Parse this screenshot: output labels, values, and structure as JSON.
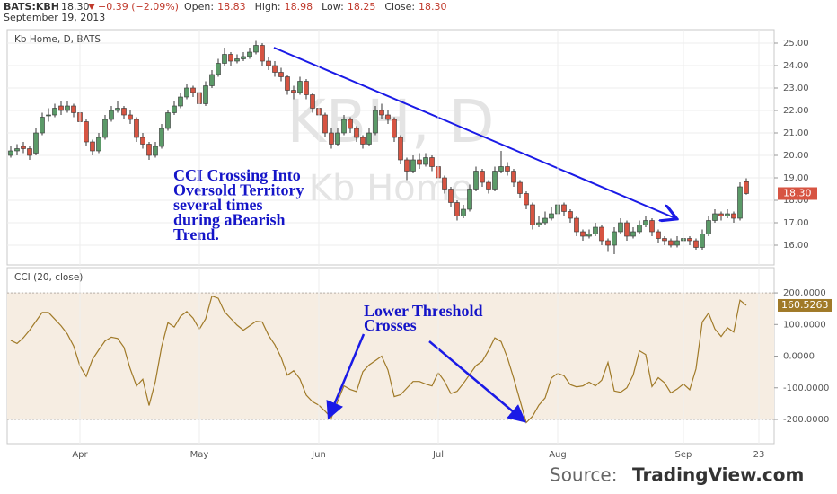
{
  "header": {
    "symbol": "BATS:KBH",
    "last": "18.30",
    "change": "−0.39 (−2.09%)",
    "fields": [
      {
        "label": "Open:",
        "value": "18.83"
      },
      {
        "label": "High:",
        "value": "18.98"
      },
      {
        "label": "Low:",
        "value": "18.25"
      },
      {
        "label": "Close:",
        "value": "18.30"
      }
    ],
    "date": "September 19, 2013"
  },
  "source": {
    "label": "Source:",
    "site": "TradingView.com"
  },
  "x_axis": {
    "xlim": [
      -0.57,
      121.43
    ],
    "xticks": [
      {
        "value": 11,
        "label": "Apr"
      },
      {
        "value": 30,
        "label": "May"
      },
      {
        "value": 49,
        "label": "Jun"
      },
      {
        "value": 68,
        "label": "Jul"
      },
      {
        "value": 87,
        "label": "Aug"
      },
      {
        "value": 107,
        "label": "Sep"
      },
      {
        "value": 119,
        "label": "23"
      }
    ]
  },
  "chart_data": [
    {
      "type": "candlestick",
      "title": "Kb Home, D, BATS",
      "watermark": [
        "KBH, D",
        "Kb Home"
      ],
      "up_color": "#5b9a68",
      "down_color": "#d75442",
      "grid": true,
      "annotation": [
        "CCI Crossing Into",
        "Oversold Territory",
        "several times",
        "during aBearish",
        "Trend."
      ],
      "price_label": "18.30",
      "ylim": [
        15.2,
        25.4
      ],
      "yticks": [
        {
          "value": 16,
          "label": "16.00"
        },
        {
          "value": 17,
          "label": "17.00"
        },
        {
          "value": 18,
          "label": "18.00"
        },
        {
          "value": 19,
          "label": "19.00"
        },
        {
          "value": 20,
          "label": "20.00"
        },
        {
          "value": 21,
          "label": "21.00"
        },
        {
          "value": 22,
          "label": "22.00"
        },
        {
          "value": 23,
          "label": "23.00"
        },
        {
          "value": 24,
          "label": "24.00"
        },
        {
          "value": 25,
          "label": "25.00"
        }
      ],
      "ohlc": [
        [
          20.0,
          20.4,
          19.9,
          20.2
        ],
        [
          20.2,
          20.5,
          20.0,
          20.3
        ],
        [
          20.4,
          20.6,
          20.1,
          20.3
        ],
        [
          20.3,
          20.4,
          19.8,
          20.0
        ],
        [
          20.1,
          21.2,
          20.0,
          21.0
        ],
        [
          21.0,
          21.9,
          20.9,
          21.7
        ],
        [
          21.8,
          22.1,
          21.5,
          21.8
        ],
        [
          21.8,
          22.3,
          21.7,
          22.1
        ],
        [
          22.2,
          22.4,
          21.8,
          22.0
        ],
        [
          22.0,
          22.4,
          21.9,
          22.2
        ],
        [
          22.2,
          22.3,
          21.7,
          21.9
        ],
        [
          21.9,
          22.0,
          21.3,
          21.5
        ],
        [
          21.5,
          21.6,
          20.4,
          20.6
        ],
        [
          20.6,
          20.7,
          20.0,
          20.2
        ],
        [
          20.2,
          21.0,
          20.1,
          20.8
        ],
        [
          20.8,
          21.8,
          20.7,
          21.6
        ],
        [
          21.6,
          22.2,
          21.5,
          22.0
        ],
        [
          22.0,
          22.4,
          21.9,
          22.1
        ],
        [
          22.1,
          22.2,
          21.6,
          21.8
        ],
        [
          21.8,
          22.0,
          21.4,
          21.6
        ],
        [
          21.6,
          21.7,
          20.6,
          20.8
        ],
        [
          20.8,
          21.0,
          20.3,
          20.5
        ],
        [
          20.5,
          20.6,
          19.8,
          20.0
        ],
        [
          20.0,
          20.6,
          19.9,
          20.4
        ],
        [
          20.4,
          21.4,
          20.3,
          21.2
        ],
        [
          21.2,
          22.0,
          21.1,
          21.9
        ],
        [
          21.9,
          22.4,
          21.8,
          22.2
        ],
        [
          22.2,
          22.8,
          22.1,
          22.6
        ],
        [
          22.6,
          23.2,
          22.5,
          23.0
        ],
        [
          23.0,
          23.1,
          22.6,
          22.8
        ],
        [
          22.8,
          22.9,
          22.1,
          22.3
        ],
        [
          22.3,
          23.3,
          22.2,
          23.1
        ],
        [
          23.1,
          23.8,
          23.0,
          23.6
        ],
        [
          23.6,
          24.3,
          23.5,
          24.1
        ],
        [
          24.1,
          24.8,
          24.0,
          24.5
        ],
        [
          24.5,
          24.6,
          24.0,
          24.2
        ],
        [
          24.2,
          24.5,
          24.1,
          24.3
        ],
        [
          24.3,
          24.6,
          24.2,
          24.4
        ],
        [
          24.4,
          24.8,
          24.3,
          24.6
        ],
        [
          24.6,
          25.1,
          24.5,
          24.9
        ],
        [
          24.9,
          25.0,
          24.0,
          24.2
        ],
        [
          24.2,
          24.4,
          23.8,
          24.0
        ],
        [
          24.0,
          24.2,
          23.5,
          23.7
        ],
        [
          23.7,
          23.9,
          23.3,
          23.5
        ],
        [
          23.5,
          23.6,
          22.7,
          22.9
        ],
        [
          22.9,
          23.1,
          22.5,
          22.8
        ],
        [
          22.8,
          23.5,
          22.7,
          23.3
        ],
        [
          23.3,
          23.4,
          22.5,
          22.7
        ],
        [
          22.7,
          22.8,
          21.9,
          22.1
        ],
        [
          22.1,
          22.3,
          21.6,
          21.8
        ],
        [
          21.8,
          21.9,
          20.8,
          21.0
        ],
        [
          21.0,
          21.2,
          20.3,
          20.5
        ],
        [
          20.5,
          21.2,
          20.4,
          21.0
        ],
        [
          21.0,
          21.8,
          20.9,
          21.6
        ],
        [
          21.6,
          21.7,
          21.0,
          21.2
        ],
        [
          21.2,
          21.3,
          20.6,
          20.8
        ],
        [
          20.8,
          20.9,
          20.3,
          20.5
        ],
        [
          20.5,
          21.2,
          20.4,
          21.0
        ],
        [
          21.0,
          22.2,
          20.9,
          22.0
        ],
        [
          22.0,
          22.3,
          21.6,
          21.8
        ],
        [
          21.8,
          22.0,
          21.4,
          21.6
        ],
        [
          21.6,
          21.7,
          20.6,
          20.8
        ],
        [
          20.8,
          20.9,
          19.6,
          19.8
        ],
        [
          19.8,
          19.9,
          18.9,
          19.3
        ],
        [
          19.3,
          20.0,
          19.2,
          19.8
        ],
        [
          19.8,
          20.1,
          19.4,
          19.6
        ],
        [
          19.6,
          20.1,
          19.5,
          19.9
        ],
        [
          19.9,
          20.0,
          19.3,
          19.5
        ],
        [
          19.5,
          19.6,
          18.8,
          19.0
        ],
        [
          19.0,
          19.1,
          18.3,
          18.5
        ],
        [
          18.5,
          18.6,
          17.7,
          17.9
        ],
        [
          17.9,
          18.0,
          17.1,
          17.3
        ],
        [
          17.3,
          17.8,
          17.2,
          17.6
        ],
        [
          17.6,
          18.7,
          17.5,
          18.5
        ],
        [
          18.5,
          19.5,
          18.4,
          19.3
        ],
        [
          19.3,
          19.4,
          18.6,
          18.8
        ],
        [
          18.8,
          18.9,
          18.3,
          18.5
        ],
        [
          18.5,
          19.5,
          18.4,
          19.3
        ],
        [
          19.3,
          20.2,
          19.2,
          19.5
        ],
        [
          19.5,
          19.7,
          19.1,
          19.3
        ],
        [
          19.3,
          19.4,
          18.6,
          18.8
        ],
        [
          18.8,
          18.9,
          18.1,
          18.3
        ],
        [
          18.3,
          18.4,
          17.6,
          17.8
        ],
        [
          17.8,
          17.9,
          16.7,
          16.9
        ],
        [
          16.9,
          17.3,
          16.8,
          17.0
        ],
        [
          17.0,
          17.5,
          16.9,
          17.2
        ],
        [
          17.2,
          17.7,
          17.1,
          17.4
        ],
        [
          17.4,
          18.2,
          17.3,
          17.8
        ],
        [
          17.8,
          17.9,
          17.3,
          17.5
        ],
        [
          17.5,
          17.6,
          17.0,
          17.2
        ],
        [
          17.2,
          17.3,
          16.4,
          16.6
        ],
        [
          16.6,
          16.7,
          16.2,
          16.4
        ],
        [
          16.4,
          16.7,
          16.3,
          16.5
        ],
        [
          16.5,
          17.0,
          16.4,
          16.8
        ],
        [
          16.8,
          16.9,
          16.0,
          16.2
        ],
        [
          16.2,
          16.3,
          15.7,
          16.0
        ],
        [
          16.0,
          16.8,
          15.6,
          16.6
        ],
        [
          16.6,
          17.2,
          16.5,
          17.0
        ],
        [
          17.0,
          17.1,
          16.2,
          16.4
        ],
        [
          16.4,
          16.8,
          16.3,
          16.6
        ],
        [
          16.6,
          17.1,
          16.5,
          16.9
        ],
        [
          16.9,
          17.3,
          16.8,
          17.1
        ],
        [
          17.1,
          17.2,
          16.4,
          16.6
        ],
        [
          16.6,
          16.7,
          16.1,
          16.3
        ],
        [
          16.3,
          16.4,
          16.0,
          16.2
        ],
        [
          16.2,
          16.3,
          15.9,
          16.0
        ],
        [
          16.0,
          16.4,
          15.9,
          16.2
        ],
        [
          16.2,
          16.5,
          16.1,
          16.3
        ],
        [
          16.3,
          16.4,
          16.0,
          16.2
        ],
        [
          16.2,
          16.3,
          15.8,
          15.9
        ],
        [
          15.9,
          16.7,
          15.8,
          16.5
        ],
        [
          16.5,
          17.3,
          16.4,
          17.1
        ],
        [
          17.1,
          17.6,
          17.0,
          17.4
        ],
        [
          17.4,
          17.5,
          17.1,
          17.3
        ],
        [
          17.3,
          17.6,
          17.2,
          17.4
        ],
        [
          17.4,
          17.5,
          17.0,
          17.2
        ],
        [
          17.2,
          18.8,
          17.1,
          18.6
        ],
        [
          18.83,
          18.98,
          18.25,
          18.3
        ]
      ]
    },
    {
      "type": "line",
      "title": "CCI (20, close)",
      "color": "#a07a28",
      "band_color": "#f6ede2",
      "thresholds": [
        -200,
        200
      ],
      "grid": true,
      "annotation": [
        "Lower Threshold",
        "Crosses"
      ],
      "ylim": [
        -271,
        274
      ],
      "yticks": [
        {
          "value": 200,
          "label": "200.0000"
        },
        {
          "value": 100,
          "label": "100.0000"
        },
        {
          "value": 0,
          "label": "0.0000"
        },
        {
          "value": -100,
          "label": "-100.0000"
        },
        {
          "value": -200,
          "label": "-200.0000"
        }
      ],
      "values": [
        50,
        40,
        58,
        82,
        110,
        138,
        138,
        117,
        96,
        70,
        32,
        -31,
        -64,
        -10,
        20,
        48,
        60,
        56,
        28,
        -40,
        -94,
        -73,
        -156,
        -80,
        30,
        106,
        92,
        126,
        141,
        120,
        85,
        118,
        190,
        183,
        140,
        119,
        98,
        82,
        96,
        110,
        108,
        66,
        36,
        -4,
        -60,
        -46,
        -72,
        -123,
        -144,
        -155,
        -174,
        -195,
        -143,
        -94,
        -105,
        -112,
        -49,
        -28,
        -14,
        0,
        -44,
        -128,
        -122,
        -101,
        -80,
        -80,
        -88,
        -94,
        -52,
        -80,
        -118,
        -111,
        -86,
        -58,
        -30,
        -16,
        18,
        58,
        46,
        -5,
        -70,
        -140,
        -210,
        -190,
        -155,
        -132,
        -69,
        -54,
        -62,
        -90,
        -97,
        -94,
        -82,
        -94,
        -76,
        -20,
        -110,
        -114,
        -100,
        -60,
        17,
        5,
        -96,
        -68,
        -84,
        -116,
        -104,
        -88,
        -106,
        -40,
        108,
        136,
        86,
        62,
        90,
        76,
        177,
        160.5263
      ]
    }
  ]
}
